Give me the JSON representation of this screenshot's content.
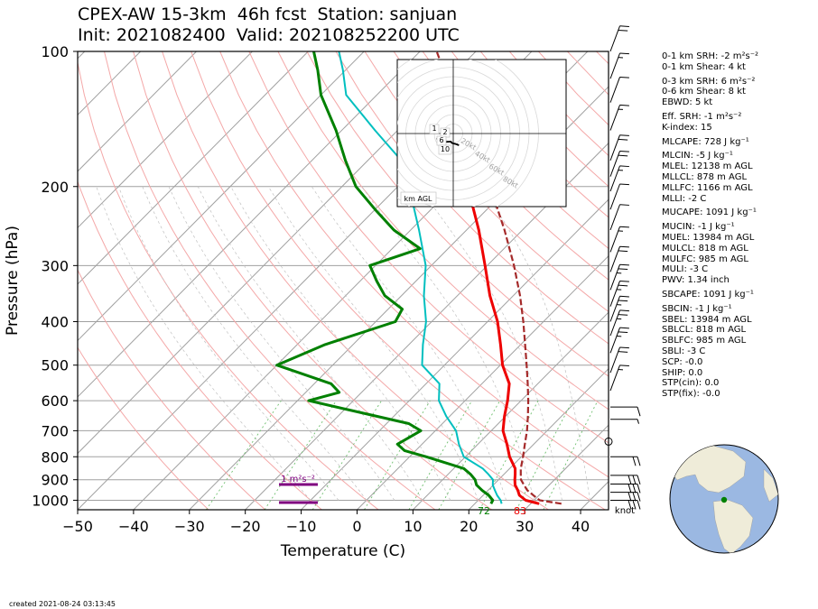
{
  "title_line1": "CPEX-AW 15-3km  46h fcst  Station: sanjuan",
  "title_line2": "Init: 2021082400  Valid: 202108252200 UTC",
  "created": "created 2021-08-24 03:13:45",
  "colors": {
    "temperature": "#ee0000",
    "dewpoint": "#008000",
    "wetbulb": "#00bfbf",
    "parcel": "#a52a2a",
    "isotherm": "#a0a0a0",
    "dry_adiabat": "#f4a8a8",
    "mixing_ratio": "#70c070",
    "srh_bar": "#800080"
  },
  "chart_data": {
    "type": "skew-t log-p",
    "xlabel": "Temperature (C)",
    "ylabel": "Pressure (hPa)",
    "xlim": [
      -50,
      45
    ],
    "ylim": [
      1050,
      100
    ],
    "y_scale": "log",
    "x_ticks": [
      -50,
      -40,
      -30,
      -20,
      -10,
      0,
      10,
      20,
      30,
      40
    ],
    "y_ticks": [
      100,
      200,
      300,
      400,
      500,
      600,
      700,
      800,
      900,
      1000
    ],
    "grid": true,
    "series": [
      {
        "key": "temperature",
        "values_p_t": [
          [
            1018,
            31.5
          ],
          [
            1000,
            28.5
          ],
          [
            975,
            26.5
          ],
          [
            950,
            25.3
          ],
          [
            925,
            23.9
          ],
          [
            900,
            22.9
          ],
          [
            875,
            22.0
          ],
          [
            850,
            21.0
          ],
          [
            800,
            17.9
          ],
          [
            750,
            15.2
          ],
          [
            700,
            12.1
          ],
          [
            650,
            9.8
          ],
          [
            600,
            7.6
          ],
          [
            550,
            4.9
          ],
          [
            500,
            0.4
          ],
          [
            450,
            -3.6
          ],
          [
            400,
            -8.2
          ],
          [
            350,
            -14.2
          ],
          [
            300,
            -20.4
          ],
          [
            250,
            -27.8
          ],
          [
            200,
            -37.5
          ],
          [
            175,
            -42.6
          ]
        ]
      },
      {
        "key": "dewpoint",
        "values_p_t": [
          [
            1018,
            22.9
          ],
          [
            1000,
            22.6
          ],
          [
            975,
            21.0
          ],
          [
            950,
            18.9
          ],
          [
            925,
            17.0
          ],
          [
            900,
            15.8
          ],
          [
            875,
            14.0
          ],
          [
            850,
            11.8
          ],
          [
            800,
            3.0
          ],
          [
            775,
            -2.0
          ],
          [
            750,
            -4.4
          ],
          [
            700,
            -2.6
          ],
          [
            675,
            -6.0
          ],
          [
            600,
            -28.0
          ],
          [
            575,
            -24.0
          ],
          [
            550,
            -27.0
          ],
          [
            500,
            -40.0
          ],
          [
            450,
            -35.0
          ],
          [
            400,
            -26.5
          ],
          [
            375,
            -27.5
          ],
          [
            350,
            -33.0
          ],
          [
            325,
            -37.0
          ],
          [
            300,
            -41.0
          ],
          [
            275,
            -35.0
          ],
          [
            250,
            -43.0
          ],
          [
            225,
            -50.0
          ],
          [
            200,
            -57.5
          ],
          [
            175,
            -64.0
          ],
          [
            150,
            -71.0
          ],
          [
            125,
            -80.0
          ],
          [
            110,
            -85.0
          ],
          [
            100,
            -89.0
          ]
        ]
      },
      {
        "key": "wetbulb",
        "values_p_t": [
          [
            1018,
            24.8
          ],
          [
            1000,
            24.0
          ],
          [
            975,
            22.5
          ],
          [
            950,
            21.2
          ],
          [
            925,
            19.9
          ],
          [
            900,
            19.0
          ],
          [
            875,
            17.2
          ],
          [
            850,
            15.2
          ],
          [
            800,
            9.7
          ],
          [
            750,
            6.6
          ],
          [
            700,
            3.7
          ],
          [
            650,
            -0.6
          ],
          [
            600,
            -4.7
          ],
          [
            550,
            -7.6
          ],
          [
            500,
            -14.0
          ],
          [
            450,
            -17.5
          ],
          [
            400,
            -21.0
          ],
          [
            350,
            -26.0
          ],
          [
            300,
            -31.0
          ],
          [
            250,
            -38.5
          ],
          [
            200,
            -48.0
          ],
          [
            175,
            -54.0
          ],
          [
            150,
            -64.0
          ],
          [
            125,
            -75.5
          ],
          [
            110,
            -80.5
          ],
          [
            100,
            -84.5
          ]
        ]
      },
      {
        "key": "parcel",
        "values_p_t": [
          [
            1018,
            35.5
          ],
          [
            1000,
            31.0
          ],
          [
            975,
            29.0
          ],
          [
            950,
            27.0
          ],
          [
            925,
            25.5
          ],
          [
            900,
            24.0
          ],
          [
            875,
            23.0
          ],
          [
            850,
            22.0
          ],
          [
            800,
            20.3
          ],
          [
            750,
            18.4
          ],
          [
            700,
            16.4
          ],
          [
            650,
            14.0
          ],
          [
            600,
            11.3
          ],
          [
            550,
            8.2
          ],
          [
            500,
            4.7
          ],
          [
            450,
            0.8
          ],
          [
            400,
            -3.6
          ],
          [
            350,
            -8.8
          ],
          [
            300,
            -15.2
          ],
          [
            250,
            -23.2
          ],
          [
            200,
            -33.5
          ],
          [
            175,
            -40.0
          ],
          [
            150,
            -47.5
          ],
          [
            125,
            -55.5
          ],
          [
            110,
            -62.5
          ],
          [
            100,
            -67.0
          ]
        ]
      }
    ],
    "surface_labels": [
      {
        "text": "72",
        "color": "#008000"
      },
      {
        "text": "83",
        "color": "#ee0000"
      }
    ],
    "srh_annotation": "1 m²s⁻²",
    "barb_unit_label": "knot",
    "hodograph": {
      "x_range": [
        -90,
        90
      ],
      "y_range": [
        -90,
        90
      ],
      "ring_labels": [
        "20kt",
        "40kt",
        "60kt",
        "80kt"
      ],
      "height_labels": [
        "1",
        "2",
        "6",
        "10"
      ],
      "legend": "km AGL",
      "trace": [
        [
          -35,
          -10
        ],
        [
          -20,
          -18
        ],
        [
          -5,
          -17
        ],
        [
          -3,
          -20
        ],
        [
          5,
          -22
        ],
        [
          12,
          -25
        ],
        [
          7,
          -22
        ]
      ]
    },
    "wind_barbs_kt": [
      {
        "p": 100,
        "speed": 20
      },
      {
        "p": 115,
        "speed": 15
      },
      {
        "p": 130,
        "speed": 10
      },
      {
        "p": 150,
        "speed": 15
      },
      {
        "p": 175,
        "speed": 20
      },
      {
        "p": 190,
        "speed": 20
      },
      {
        "p": 205,
        "speed": 15
      },
      {
        "p": 225,
        "speed": 10
      },
      {
        "p": 250,
        "speed": 10
      },
      {
        "p": 280,
        "speed": 15
      },
      {
        "p": 310,
        "speed": 20
      },
      {
        "p": 340,
        "speed": 25
      },
      {
        "p": 370,
        "speed": 25
      },
      {
        "p": 400,
        "speed": 25
      },
      {
        "p": 430,
        "speed": 25
      },
      {
        "p": 470,
        "speed": 25
      },
      {
        "p": 520,
        "speed": 20
      },
      {
        "p": 570,
        "speed": 15
      },
      {
        "p": 620,
        "speed": 10
      },
      {
        "p": 660,
        "speed": 5
      },
      {
        "p": 740,
        "speed": 0
      },
      {
        "p": 800,
        "speed": 20
      },
      {
        "p": 880,
        "speed": 30
      },
      {
        "p": 920,
        "speed": 30
      },
      {
        "p": 960,
        "speed": 30
      },
      {
        "p": 1000,
        "speed": 30
      }
    ]
  },
  "stats": [
    "0-1 km SRH: -2 m²s⁻²",
    "0-1 km Shear: 4 kt",
    "0-3 km SRH: 6 m²s⁻²",
    "0-6 km Shear: 8 kt",
    "EBWD: 5 kt",
    "Eff. SRH: -1 m²s⁻²",
    "K-index: 15",
    "MLCAPE: 728 J kg⁻¹",
    "MLCIN: -5 J kg⁻¹",
    "MLEL: 12138 m AGL",
    "MLLCL: 878 m AGL",
    "MLLFC: 1166 m AGL",
    "MLLI: -2 C",
    "MUCAPE: 1091 J kg⁻¹",
    "MUCIN: -1 J kg⁻¹",
    "MUEL: 13984 m AGL",
    "MULCL: 818 m AGL",
    "MULFC: 985 m AGL",
    "MULI: -3 C",
    "PWV: 1.34 inch",
    "SBCAPE: 1091 J kg⁻¹",
    "SBCIN: -1 J kg⁻¹",
    "SBEL: 13984 m AGL",
    "SBLCL: 818 m AGL",
    "SBLFC: 985 m AGL",
    "SBLI: -3 C",
    "SCP: -0.0",
    "SHIP: 0.0",
    "STP(cin): 0.0",
    "STP(fix): -0.0"
  ]
}
